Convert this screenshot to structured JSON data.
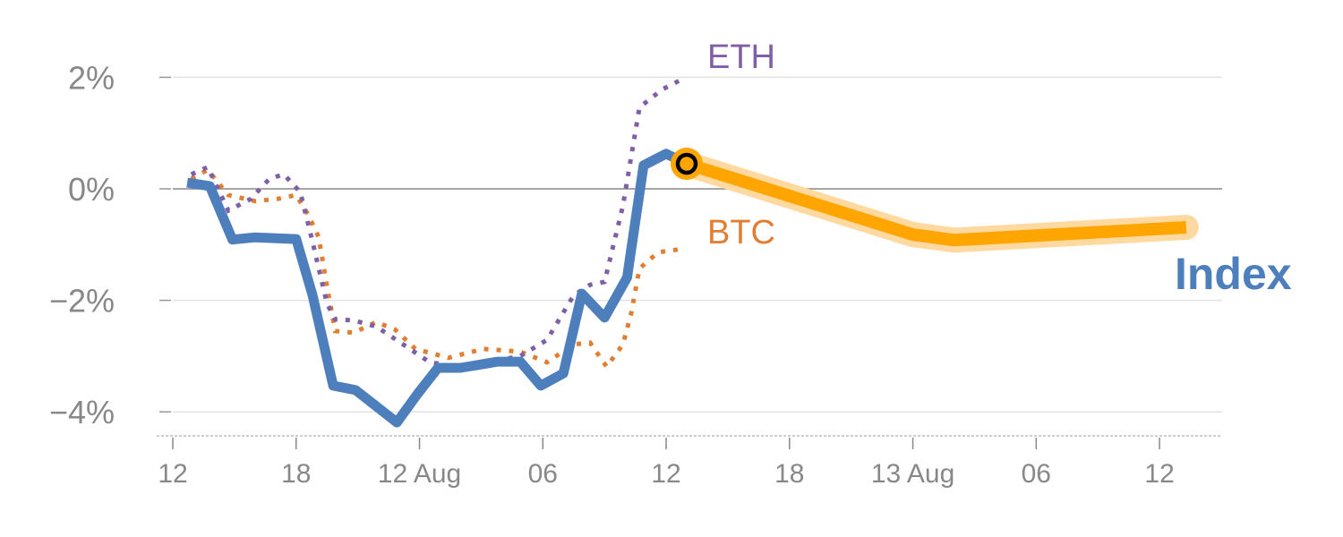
{
  "chart_data": {
    "type": "line",
    "title": "",
    "xlabel": "",
    "ylabel": "",
    "x_units": "hours since 11 Aug 12:00",
    "xlim": [
      -0.8,
      51.0
    ],
    "ylim": [
      -4.43,
      3.4
    ],
    "grid": true,
    "y_ticks": [
      {
        "value": 2,
        "label": "2%"
      },
      {
        "value": 0,
        "label": "0%"
      },
      {
        "value": -2,
        "label": "−2%"
      },
      {
        "value": -4,
        "label": "−4%"
      }
    ],
    "x_ticks": [
      {
        "value": 0,
        "label": "12"
      },
      {
        "value": 6,
        "label": "18"
      },
      {
        "value": 12,
        "label": "12 Aug"
      },
      {
        "value": 18,
        "label": "06"
      },
      {
        "value": 24,
        "label": "12"
      },
      {
        "value": 30,
        "label": "18"
      },
      {
        "value": 36,
        "label": "13 Aug"
      },
      {
        "value": 42,
        "label": "06"
      },
      {
        "value": 48,
        "label": "12"
      }
    ],
    "series": [
      {
        "name": "ETH",
        "label": "ETH",
        "color": "#7f5fa6",
        "style": "dotted",
        "x": [
          0.9,
          1.7,
          2.7,
          3.8,
          4.7,
          5.4,
          6.2,
          6.8,
          7.5,
          7.9,
          8.8,
          9.9,
          11.2,
          12.5,
          13.8,
          15.3,
          16.9,
          18.2,
          19.5,
          20.3,
          21.0,
          21.9,
          22.7,
          23.8,
          24.9
        ],
        "y": [
          0.26,
          0.39,
          -0.39,
          -0.18,
          0.18,
          0.26,
          -0.06,
          -0.95,
          -2.06,
          -2.34,
          -2.36,
          -2.47,
          -2.79,
          -3.11,
          -3.19,
          -3.11,
          -3.0,
          -2.71,
          -1.91,
          -1.72,
          -1.67,
          -0.3,
          1.46,
          1.78,
          1.99
        ]
      },
      {
        "name": "BTC",
        "label": "BTC",
        "color": "#e07f33",
        "style": "dotted",
        "x": [
          0.9,
          1.7,
          2.7,
          4.0,
          5.1,
          6.0,
          6.6,
          7.1,
          7.5,
          7.9,
          8.8,
          9.9,
          10.8,
          11.8,
          13.4,
          15.1,
          16.9,
          18.2,
          19.5,
          20.3,
          21.1,
          21.9,
          22.3,
          22.7,
          23.6,
          24.9
        ],
        "y": [
          0.18,
          0.34,
          -0.11,
          -0.22,
          -0.18,
          -0.11,
          -0.47,
          -0.87,
          -1.75,
          -2.55,
          -2.58,
          -2.39,
          -2.52,
          -2.87,
          -3.03,
          -2.87,
          -2.92,
          -3.11,
          -2.79,
          -2.76,
          -3.19,
          -2.79,
          -2.23,
          -1.43,
          -1.14,
          -1.07
        ]
      },
      {
        "name": "Index",
        "label": "Index",
        "color": "#4e7fbd",
        "style": "solid",
        "x": [
          0.7,
          1.8,
          2.9,
          4.0,
          6.0,
          6.8,
          7.8,
          8.9,
          10.9,
          11.9,
          12.9,
          14.0,
          15.0,
          15.8,
          16.9,
          17.9,
          19.0,
          19.9,
          21.0,
          22.1,
          22.9,
          24.0,
          25.0
        ],
        "y": [
          0.11,
          0.05,
          -0.91,
          -0.87,
          -0.9,
          -1.91,
          -3.53,
          -3.61,
          -4.19,
          -3.68,
          -3.21,
          -3.21,
          -3.15,
          -3.1,
          -3.1,
          -3.53,
          -3.31,
          -1.88,
          -2.31,
          -1.59,
          0.42,
          0.63,
          0.45
        ]
      },
      {
        "name": "Index forecast",
        "color": "#ffa500",
        "halo_color": "#ffd9a0",
        "style": "thick",
        "x": [
          25.0,
          36.0,
          38.0,
          49.3
        ],
        "y": [
          0.45,
          -0.82,
          -0.92,
          -0.69
        ]
      }
    ],
    "marker": {
      "x": 25.0,
      "y": 0.45,
      "fill": "#ffa500",
      "ring": "#000000"
    }
  }
}
